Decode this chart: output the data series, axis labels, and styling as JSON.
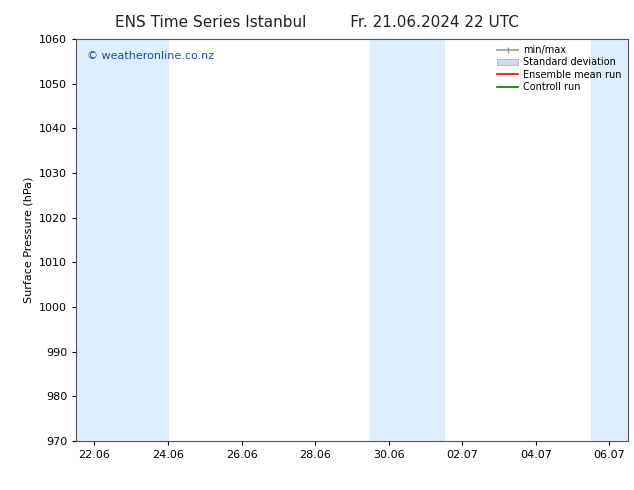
{
  "title": "ENS Time Series Istanbul",
  "title_right": "Fr. 21.06.2024 22 UTC",
  "ylabel": "Surface Pressure (hPa)",
  "ylim": [
    970,
    1060
  ],
  "yticks": [
    970,
    980,
    990,
    1000,
    1010,
    1020,
    1030,
    1040,
    1050,
    1060
  ],
  "xlabel_ticks": [
    "22.06",
    "24.06",
    "26.06",
    "28.06",
    "30.06",
    "02.07",
    "04.07",
    "06.07"
  ],
  "x_tick_vals": [
    0,
    2,
    4,
    6,
    8,
    10,
    12,
    14
  ],
  "xlim": [
    -0.5,
    14.5
  ],
  "watermark": "© weatheronline.co.nz",
  "watermark_color": "#2244bb",
  "bg_color": "#ffffff",
  "plot_bg_color": "#ffffff",
  "shaded_bands": [
    {
      "x_start": -0.5,
      "x_end": 2.0,
      "color": "#ddeeff"
    },
    {
      "x_start": 7.5,
      "x_end": 9.5,
      "color": "#ddeeff"
    },
    {
      "x_start": 13.5,
      "x_end": 14.5,
      "color": "#ddeeff"
    }
  ],
  "legend_entries": [
    {
      "label": "min/max",
      "color": "#999999",
      "lw": 1.2,
      "style": "minmax"
    },
    {
      "label": "Standard deviation",
      "color": "#ccddf0",
      "lw": 5,
      "style": "band"
    },
    {
      "label": "Ensemble mean run",
      "color": "#ff0000",
      "lw": 1.2,
      "style": "line"
    },
    {
      "label": "Controll run",
      "color": "#007700",
      "lw": 1.2,
      "style": "line"
    }
  ],
  "title_fontsize": 11,
  "tick_fontsize": 8,
  "label_fontsize": 8,
  "watermark_fontsize": 8,
  "legend_fontsize": 7
}
